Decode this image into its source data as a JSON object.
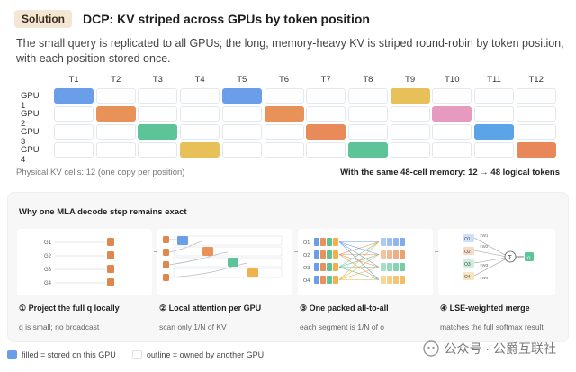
{
  "header": {
    "badge": "Solution",
    "title": "DCP: KV striped across GPUs by token position",
    "subtitle": "The small query is replicated to all GPUs; the long, memory-heavy KV is striped round-robin by token position, with each position stored once."
  },
  "grid": {
    "columns": [
      "T1",
      "T2",
      "T3",
      "T4",
      "T5",
      "T6",
      "T7",
      "T8",
      "T9",
      "T10",
      "T11",
      "T12"
    ],
    "rows": [
      {
        "label": "GPU 1",
        "color": "#6a9ee8",
        "filled": [
          1,
          5,
          9
        ]
      },
      {
        "label": "GPU 2",
        "color": "#e8925a",
        "filled": [
          2,
          6,
          10
        ]
      },
      {
        "label": "GPU 3",
        "color": "#5cc498",
        "filled": [
          3,
          7,
          11
        ]
      },
      {
        "label": "GPU 4",
        "color": "#f0b24c",
        "filled": [
          4,
          8,
          12
        ]
      }
    ],
    "cell_colors": {
      "1": "#6a9ee8",
      "2": "#e8925a",
      "3": "#5cc498",
      "4": "#e8c05a",
      "5": "#6a9ee8",
      "6": "#e8925a",
      "7": "#e88a5a",
      "8": "#5cc498",
      "9": "#e8c05a",
      "10": "#e79ac0",
      "11": "#5ca4e8",
      "12": "#e8875a"
    }
  },
  "footer": {
    "left": "Physical KV cells: 12 (one copy per position)",
    "right": "With the same 48-cell memory: 12 → 48 logical tokens"
  },
  "panel": {
    "title": "Why one MLA decode step remains exact",
    "steps": [
      {
        "title": "① Project the full q locally",
        "desc": "q is small; no broadcast"
      },
      {
        "title": "② Local attention per GPU",
        "desc": "scan only 1/N of KV"
      },
      {
        "title": "③ One packed all-to-all",
        "desc": "each segment is 1/N of o"
      },
      {
        "title": "④ LSE-weighted merge",
        "desc": "matches the full softmax result"
      }
    ],
    "q_labels": [
      "G1",
      "G2",
      "G3",
      "G4"
    ],
    "o_labels": [
      "O1",
      "O2",
      "O3",
      "O4"
    ],
    "merge_labels": [
      "O1",
      "O2",
      "O3",
      "O4"
    ],
    "merge_weights": [
      "×W1",
      "×W2",
      "×W3",
      "×W4"
    ],
    "merge_sum": "Σ",
    "merge_out": "o"
  },
  "legend": {
    "filled": "filled = stored on this GPU",
    "outline": "outline = owned by another GPU",
    "filled_color": "#6a9ee8"
  },
  "watermark": {
    "text": "公众号 · 公爵互联社"
  }
}
